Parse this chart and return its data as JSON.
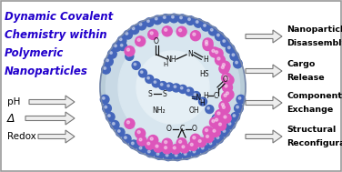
{
  "title_lines": [
    "Dynamic Covalent",
    "Chemistry within",
    "Polymeric",
    "Nanoparticles"
  ],
  "title_color": "#2200cc",
  "left_labels": [
    "pH",
    "Δ",
    "Redox"
  ],
  "right_top": [
    "Nanoparticle",
    "Disassembly"
  ],
  "right_mid1": [
    "Cargo",
    "Release"
  ],
  "right_mid2": [
    "Component",
    "Exchange"
  ],
  "right_bot": [
    "Structural",
    "Reconfiguration"
  ],
  "bg_color": "#ffffff",
  "sphere_fill": "#cdd9e5",
  "sphere_edge": "#8899aa",
  "blue_bead": "#4466bb",
  "pink_bead": "#dd55bb",
  "arrow_face": "#eeeeee",
  "arrow_edge": "#777777",
  "chem_color": "#111111"
}
